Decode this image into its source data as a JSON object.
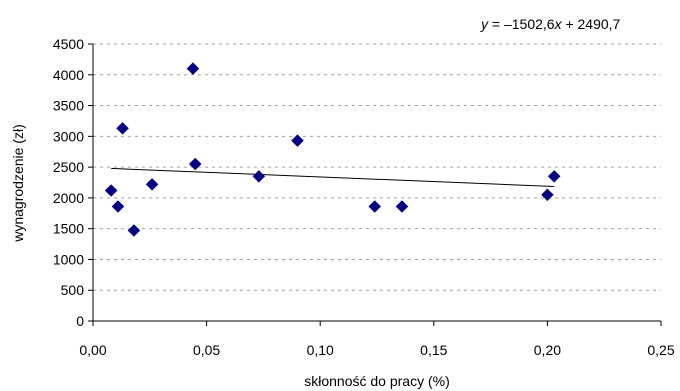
{
  "chart_data": {
    "type": "scatter",
    "xlabel": "skłonność do pracy (%)",
    "ylabel": "wynagrodzenie (zł)",
    "xlim": [
      0,
      0.25
    ],
    "ylim": [
      0,
      4500
    ],
    "x_ticks": [
      0,
      0.05,
      0.1,
      0.15,
      0.2,
      0.25
    ],
    "x_tick_labels": [
      "0,00",
      "0,05",
      "0,10",
      "0,15",
      "0,20",
      "0,25"
    ],
    "y_ticks": [
      0,
      500,
      1000,
      1500,
      2000,
      2500,
      3000,
      3500,
      4000,
      4500
    ],
    "y_tick_labels": [
      "0",
      "500",
      "1000",
      "1500",
      "2000",
      "2500",
      "3000",
      "3500",
      "4000",
      "4500"
    ],
    "grid": "horizontal dashed",
    "marker": "diamond",
    "marker_color": "#000080",
    "trendline_color": "#000000",
    "points": [
      {
        "x": 0.008,
        "y": 2120
      },
      {
        "x": 0.011,
        "y": 1860
      },
      {
        "x": 0.013,
        "y": 3130
      },
      {
        "x": 0.018,
        "y": 1470
      },
      {
        "x": 0.026,
        "y": 2220
      },
      {
        "x": 0.044,
        "y": 4100
      },
      {
        "x": 0.045,
        "y": 2550
      },
      {
        "x": 0.073,
        "y": 2350
      },
      {
        "x": 0.09,
        "y": 2930
      },
      {
        "x": 0.124,
        "y": 1860
      },
      {
        "x": 0.136,
        "y": 1860
      },
      {
        "x": 0.2,
        "y": 2050
      },
      {
        "x": 0.203,
        "y": 2350
      }
    ],
    "trendline": {
      "slope": -1502.6,
      "intercept": 2490.7,
      "x_range": [
        0.008,
        0.203
      ],
      "equation_prefix": "y",
      "equation_mid": " = –1502,6",
      "equation_var": "x",
      "equation_suffix": " + 2490,7"
    }
  }
}
